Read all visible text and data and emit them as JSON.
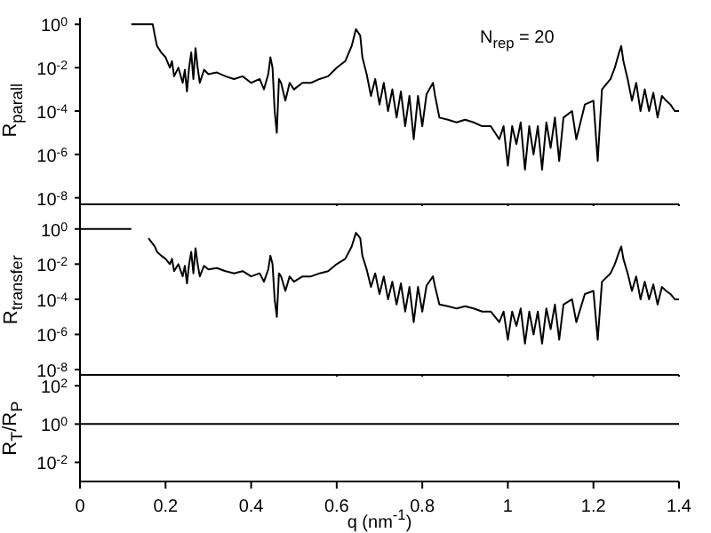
{
  "chart_data": [
    {
      "type": "line",
      "ylabel": "R$_{parall}$",
      "annotations": [
        "N$_{rep}$ = 20"
      ],
      "log": "y",
      "tick_labels": "y",
      "xlim": [
        0,
        1.4
      ],
      "xticks": [
        {
          "value": 0,
          "label": null
        },
        {
          "value": 0.6,
          "label": null
        },
        {
          "value": 0.8,
          "label": null
        },
        {
          "value": 1,
          "label": null
        },
        {
          "value": 1.2,
          "label": null
        },
        {
          "value": 1.4,
          "label": null
        }
      ],
      "ylim": [
        5e-09,
        2
      ],
      "yticks": [
        {
          "value": 1,
          "label": "10$^{0}$"
        },
        {
          "value": 0.01,
          "label": "10$^{-2}$"
        },
        {
          "value": 0.0001,
          "label": "10$^{-4}$"
        },
        {
          "value": 1e-06,
          "label": "10$^{-6}$"
        },
        {
          "value": 1e-08,
          "label": "10$^{-8}$"
        }
      ],
      "series": [
        {
          "color": "#000000",
          "x": [
            0.12,
            0.17,
            0.175,
            0.18,
            0.19,
            0.2,
            0.21,
            0.215,
            0.22,
            0.23,
            0.24,
            0.245,
            0.25,
            0.255,
            0.26,
            0.265,
            0.27,
            0.275,
            0.28,
            0.29,
            0.3,
            0.32,
            0.34,
            0.36,
            0.38,
            0.4,
            0.42,
            0.43,
            0.44,
            0.445,
            0.45,
            0.455,
            0.46,
            0.465,
            0.47,
            0.48,
            0.49,
            0.5,
            0.52,
            0.54,
            0.56,
            0.58,
            0.6,
            0.62,
            0.635,
            0.645,
            0.655,
            0.66,
            0.67,
            0.68,
            0.69,
            0.7,
            0.71,
            0.72,
            0.73,
            0.74,
            0.75,
            0.76,
            0.77,
            0.78,
            0.79,
            0.8,
            0.81,
            0.825,
            0.83,
            0.84,
            0.86,
            0.88,
            0.9,
            0.92,
            0.94,
            0.96,
            0.98,
            0.99,
            1.0,
            1.01,
            1.02,
            1.03,
            1.04,
            1.05,
            1.06,
            1.07,
            1.08,
            1.09,
            1.1,
            1.11,
            1.12,
            1.13,
            1.15,
            1.16,
            1.18,
            1.2,
            1.21,
            1.22,
            1.24,
            1.25,
            1.26,
            1.265,
            1.27,
            1.28,
            1.29,
            1.3,
            1.31,
            1.32,
            1.33,
            1.34,
            1.35,
            1.36,
            1.37,
            1.38,
            1.39,
            1.4
          ],
          "values": [
            1,
            1,
            0.3,
            0.1,
            0.05,
            0.03,
            0.01,
            0.02,
            0.004,
            0.01,
            0.002,
            0.008,
            0.0008,
            0.01,
            0.05,
            0.003,
            0.08,
            0.01,
            0.002,
            0.008,
            0.005,
            0.006,
            0.004,
            0.003,
            0.004,
            0.002,
            0.003,
            0.001,
            0.005,
            0.03,
            0.01,
            0.0001,
            1e-05,
            0.003,
            0.002,
            0.0003,
            0.002,
            0.001,
            0.002,
            0.002,
            0.003,
            0.004,
            0.01,
            0.02,
            0.1,
            0.6,
            0.3,
            0.03,
            0.005,
            0.0005,
            0.003,
            0.0002,
            0.002,
            0.0001,
            0.001,
            5e-05,
            0.0008,
            2e-05,
            0.0005,
            5e-06,
            0.0005,
            2e-05,
            0.0006,
            0.002,
            0.0005,
            5e-05,
            4e-05,
            3e-05,
            4e-05,
            3e-05,
            2e-05,
            2e-05,
            5e-06,
            2e-05,
            3e-07,
            2e-05,
            3e-06,
            3e-05,
            2e-07,
            2e-05,
            1e-06,
            2e-05,
            2e-07,
            3e-05,
            2e-06,
            5e-05,
            5e-07,
            5e-05,
            0.0001,
            5e-06,
            0.0002,
            0.0003,
            5e-07,
            0.001,
            0.003,
            0.01,
            0.05,
            0.1,
            0.02,
            0.003,
            0.0003,
            0.002,
            0.0001,
            0.001,
            0.0001,
            0.0007,
            5e-05,
            0.0005,
            0.0003,
            0.0002,
            0.0001,
            0.0001
          ]
        }
      ]
    },
    {
      "type": "line",
      "ylabel": "R$_{transfer}$",
      "log": "y",
      "tick_labels": "y",
      "xlim": [
        0,
        1.4
      ],
      "xticks": [
        {
          "value": 0,
          "label": null
        },
        {
          "value": 0.6,
          "label": null
        },
        {
          "value": 0.8,
          "label": null
        },
        {
          "value": 1,
          "label": null
        },
        {
          "value": 1.2,
          "label": null
        },
        {
          "value": 1.4,
          "label": null
        }
      ],
      "ylim": [
        5e-09,
        20
      ],
      "yticks": [
        {
          "value": 1,
          "label": "10$^{0}$"
        },
        {
          "value": 0.01,
          "label": "10$^{-2}$"
        },
        {
          "value": 0.0001,
          "label": "10$^{-4}$"
        },
        {
          "value": 1e-06,
          "label": "10$^{-6}$"
        },
        {
          "value": 1e-08,
          "label": "10$^{-8}$"
        }
      ],
      "series": [
        {
          "color": "#000000",
          "x": [
            0,
            0.12,
            0.14,
            0.16,
            0.175,
            0.18,
            0.19,
            0.2,
            0.21,
            0.215,
            0.22,
            0.23,
            0.24,
            0.245,
            0.25,
            0.255,
            0.26,
            0.265,
            0.27,
            0.275,
            0.28,
            0.29,
            0.3,
            0.32,
            0.34,
            0.36,
            0.38,
            0.4,
            0.42,
            0.43,
            0.44,
            0.445,
            0.45,
            0.455,
            0.46,
            0.465,
            0.47,
            0.48,
            0.49,
            0.5,
            0.52,
            0.54,
            0.56,
            0.58,
            0.6,
            0.62,
            0.635,
            0.645,
            0.655,
            0.66,
            0.67,
            0.68,
            0.69,
            0.7,
            0.71,
            0.72,
            0.73,
            0.74,
            0.75,
            0.76,
            0.77,
            0.78,
            0.79,
            0.8,
            0.81,
            0.825,
            0.83,
            0.84,
            0.86,
            0.88,
            0.9,
            0.92,
            0.94,
            0.96,
            0.98,
            0.99,
            1.0,
            1.01,
            1.02,
            1.03,
            1.04,
            1.05,
            1.06,
            1.07,
            1.08,
            1.09,
            1.1,
            1.11,
            1.12,
            1.13,
            1.15,
            1.16,
            1.18,
            1.2,
            1.21,
            1.22,
            1.24,
            1.25,
            1.26,
            1.265,
            1.27,
            1.28,
            1.29,
            1.3,
            1.31,
            1.32,
            1.33,
            1.34,
            1.35,
            1.36,
            1.37,
            1.38,
            1.39,
            1.4
          ],
          "values": [
            1,
            1,
            null,
            0.3,
            0.1,
            0.05,
            0.03,
            0.02,
            0.01,
            0.02,
            0.004,
            0.01,
            0.002,
            0.008,
            0.0008,
            0.01,
            0.05,
            0.003,
            0.08,
            0.01,
            0.002,
            0.008,
            0.005,
            0.006,
            0.004,
            0.003,
            0.004,
            0.002,
            0.003,
            0.001,
            0.005,
            0.03,
            0.01,
            0.0001,
            1e-05,
            0.003,
            0.002,
            0.0003,
            0.002,
            0.001,
            0.002,
            0.002,
            0.003,
            0.004,
            0.01,
            0.02,
            0.1,
            0.6,
            0.3,
            0.03,
            0.005,
            0.0005,
            0.003,
            0.0002,
            0.002,
            0.0001,
            0.001,
            5e-05,
            0.0008,
            2e-05,
            0.0005,
            5e-06,
            0.0005,
            2e-05,
            0.0006,
            0.002,
            0.0005,
            5e-05,
            4e-05,
            3e-05,
            4e-05,
            3e-05,
            2e-05,
            2e-05,
            5e-06,
            2e-05,
            5e-07,
            2e-05,
            3e-06,
            3e-05,
            3e-07,
            2e-05,
            1e-06,
            2e-05,
            3e-07,
            3e-05,
            2e-06,
            5e-05,
            5e-07,
            5e-05,
            0.0001,
            5e-06,
            0.0002,
            0.0003,
            5e-07,
            0.001,
            0.003,
            0.01,
            0.05,
            0.1,
            0.02,
            0.003,
            0.0003,
            0.002,
            0.0001,
            0.001,
            0.0001,
            0.0007,
            5e-05,
            0.0005,
            0.0003,
            0.0002,
            0.0001,
            0.0001
          ]
        }
      ]
    },
    {
      "type": "line",
      "ylabel": "R$_{T}$/R$_{P}$",
      "xlabel": "q (nm$^{-1}$)",
      "log": "y",
      "xlim": [
        0,
        1.4
      ],
      "xticks": [
        0,
        0.2,
        0.4,
        0.6,
        0.8,
        1,
        1.2,
        1.4
      ],
      "ylim": [
        0.001,
        300
      ],
      "yticks": [
        {
          "value": 100,
          "label": "10$^{2}$"
        },
        {
          "value": 1,
          "label": "10$^{0}$"
        },
        {
          "value": 0.01,
          "label": "10$^{-2}$"
        }
      ],
      "series": [
        {
          "color": "#000000",
          "x": [
            0,
            1.4
          ],
          "values": [
            1,
            1
          ]
        }
      ]
    }
  ]
}
